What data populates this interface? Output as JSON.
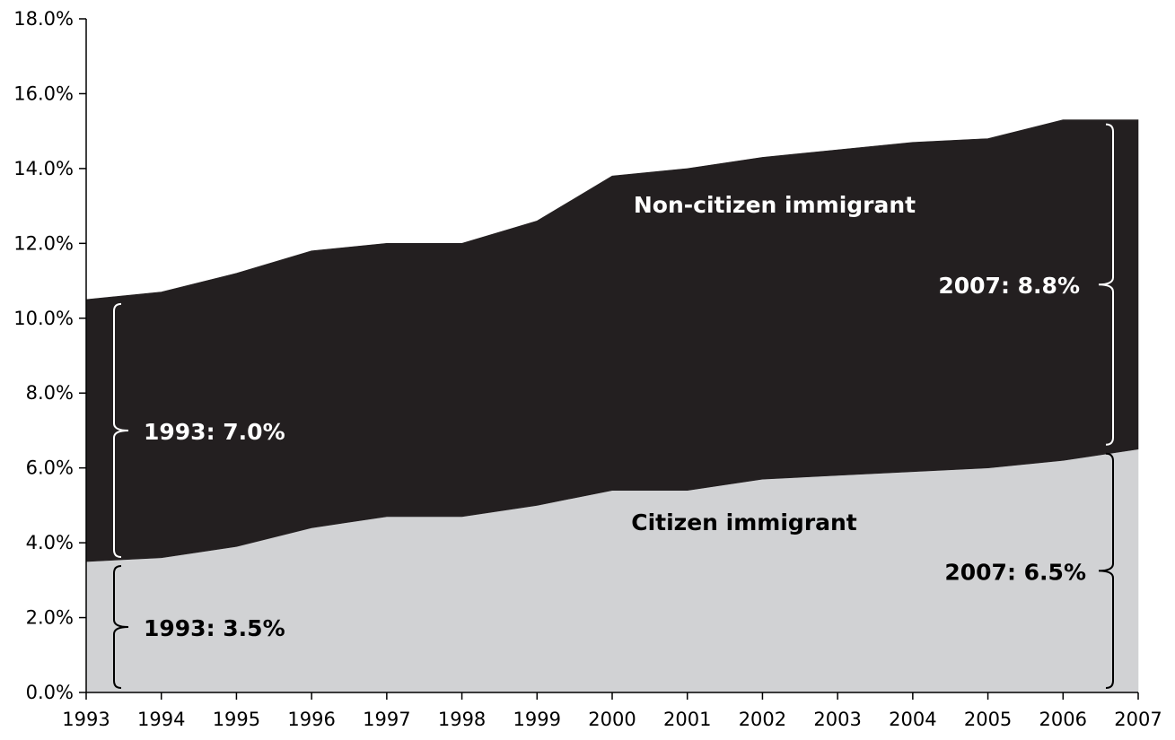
{
  "chart_data": {
    "type": "area",
    "stacked": true,
    "x": [
      1993,
      1994,
      1995,
      1996,
      1997,
      1998,
      1999,
      2000,
      2001,
      2002,
      2003,
      2004,
      2005,
      2006,
      2007
    ],
    "x_tick_labels": [
      "1993",
      "1994",
      "1995",
      "1996",
      "1997",
      "1998",
      "1999",
      "2000",
      "2001",
      "2002",
      "2003",
      "2004",
      "2005",
      "2006",
      "2007"
    ],
    "ylim": [
      0,
      18
    ],
    "y_ticks": [
      0,
      2,
      4,
      6,
      8,
      10,
      12,
      14,
      16,
      18
    ],
    "y_tick_labels": [
      "0.0%",
      "2.0%",
      "4.0%",
      "6.0%",
      "8.0%",
      "10.0%",
      "12.0%",
      "14.0%",
      "16.0%",
      "18.0%"
    ],
    "grid": false,
    "legend": "none",
    "series": [
      {
        "name": "Citizen immigrant",
        "values": [
          3.5,
          3.6,
          3.9,
          4.4,
          4.7,
          4.7,
          5.0,
          5.4,
          5.4,
          5.7,
          5.8,
          5.9,
          6.0,
          6.2,
          6.5
        ],
        "color": "#d1d2d4"
      },
      {
        "name": "Non-citizen immigrant",
        "values": [
          7.0,
          7.1,
          7.3,
          7.4,
          7.3,
          7.3,
          7.6,
          8.4,
          8.6,
          8.6,
          8.7,
          8.8,
          8.8,
          9.1,
          8.8
        ],
        "color": "#231f20"
      }
    ],
    "annotations": [
      {
        "text": "1993: 7.0%",
        "series": 1,
        "at": "start"
      },
      {
        "text": "1993: 3.5%",
        "series": 0,
        "at": "start"
      },
      {
        "text": "2007: 8.8%",
        "series": 1,
        "at": "end"
      },
      {
        "text": "2007: 6.5%",
        "series": 0,
        "at": "end"
      }
    ]
  }
}
